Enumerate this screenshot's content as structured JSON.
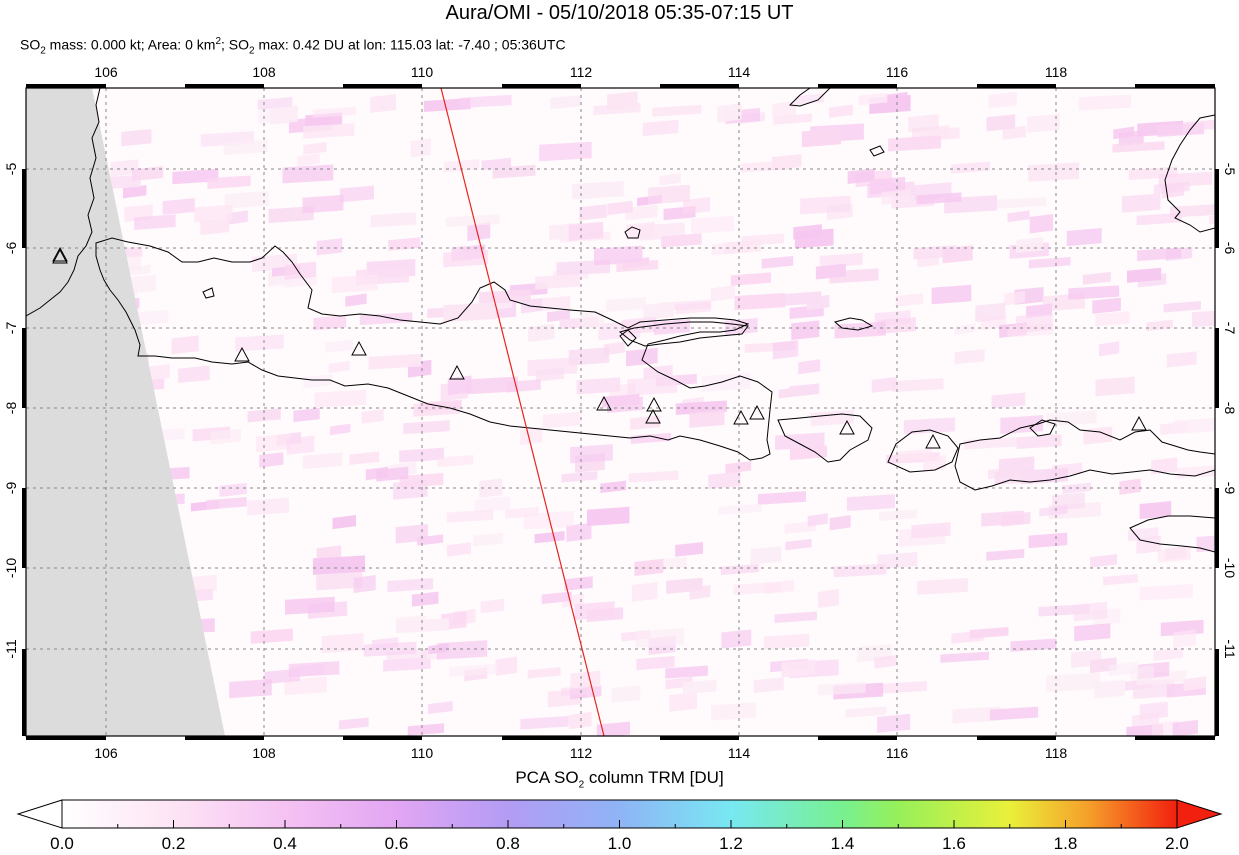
{
  "title": "Aura/OMI - 05/10/2018 05:35-07:15 UT",
  "subtitle": {
    "p1": "SO",
    "s1": "2",
    "p2": " mass: 0.000 kt; Area: 0 km",
    "sup": "2",
    "p3": "; SO",
    "s2": "2",
    "p4": " max: 0.42 DU at lon: 115.03 lat: -7.40 ; 05:36UTC"
  },
  "map": {
    "lon_range": [
      105,
      120
    ],
    "lat_range": [
      -12,
      -4
    ],
    "lon_ticks": [
      "106",
      "108",
      "110",
      "112",
      "114",
      "116",
      "118"
    ],
    "lat_ticks": [
      "-5",
      "-6",
      "-7",
      "-8",
      "-9",
      "-10",
      "-11"
    ],
    "grid": "dashed",
    "swath_edge_color": "#dcdcdc",
    "orbit_track_color": "#e8241c",
    "volcano_marker": "triangle-icon",
    "volcano_count": 13
  },
  "colorbar": {
    "title_p1": "PCA SO",
    "title_sub": "2",
    "title_p2": " column TRM [DU]",
    "labels": [
      "0.0",
      "0.2",
      "0.4",
      "0.6",
      "0.8",
      "1.0",
      "1.2",
      "1.4",
      "1.6",
      "1.8",
      "2.0"
    ],
    "range": [
      0,
      2
    ],
    "colors": [
      "#ffffff",
      "#fde4f5",
      "#f3b6f3",
      "#d89bf2",
      "#9a9af5",
      "#7cc8f7",
      "#74f4ee",
      "#7cf26e",
      "#aef04a",
      "#f7f43a",
      "#f7b02c",
      "#f2531e",
      "#f21b0d"
    ]
  }
}
